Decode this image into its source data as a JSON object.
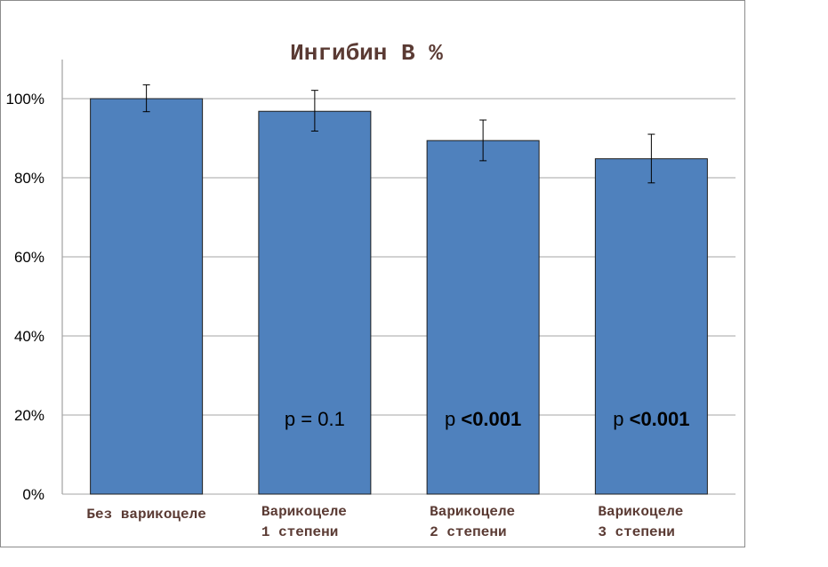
{
  "chart_data": {
    "type": "bar",
    "title": "Ингибин В %",
    "categories": [
      [
        "Без варикоцеле"
      ],
      [
        "Варикоцеле",
        "1 степени"
      ],
      [
        "Варикоцеле",
        "2 степени"
      ],
      [
        "Варикоцеле",
        "3 степени"
      ]
    ],
    "values": [
      100,
      96.8,
      89.4,
      84.8
    ],
    "error_low": [
      96.7,
      91.8,
      84.3,
      78.7
    ],
    "error_high": [
      103.5,
      102.1,
      94.6,
      91.0
    ],
    "annotations": [
      null,
      {
        "prefix": "p = 0.1",
        "bold": ""
      },
      {
        "prefix": "p ",
        "bold": "<0.001"
      },
      {
        "prefix": "p ",
        "bold": "<0.001"
      }
    ],
    "ylim": [
      0,
      100
    ],
    "yticks": [
      0,
      20,
      40,
      60,
      80,
      100
    ],
    "ytick_labels": [
      "0%",
      "20%",
      "40%",
      "60%",
      "80%",
      "100%"
    ],
    "grid": true,
    "colors": {
      "bar": "#4f81bd",
      "bar_edge": "#1f1f1f",
      "grid": "#a6a6a6",
      "title": "#5a3a33"
    }
  }
}
